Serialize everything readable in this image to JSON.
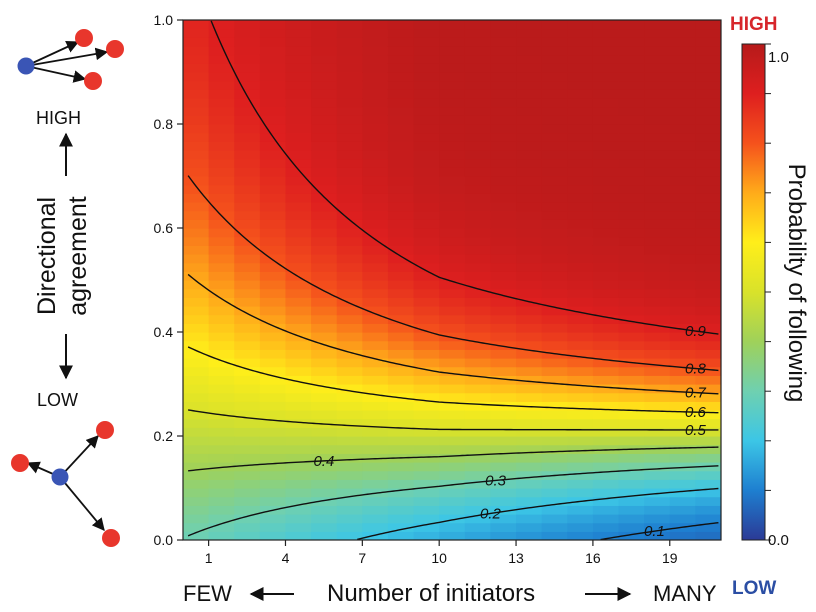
{
  "chart_data": {
    "type": "heatmap",
    "x_axis": {
      "label": "Number of initiators",
      "label_left": "FEW",
      "label_right": "MANY",
      "range": [
        0,
        21
      ],
      "ticks": [
        1,
        4,
        7,
        10,
        13,
        16,
        19
      ],
      "tick_labels": [
        "1",
        "4",
        "7",
        "10",
        "13",
        "16",
        "19"
      ]
    },
    "y_axis": {
      "label_line1": "Directional",
      "label_line2": "agreement",
      "label_top": "HIGH",
      "label_bottom": "LOW",
      "range": [
        0,
        1
      ],
      "ticks": [
        0,
        0.2,
        0.4,
        0.6,
        0.8,
        1.0
      ],
      "tick_labels": [
        "0.0",
        "0.2",
        "0.4",
        "0.6",
        "0.8",
        "1.0"
      ]
    },
    "colorbar": {
      "label": "Probability of following",
      "top_tag": "HIGH",
      "bottom_tag": "LOW",
      "min_label": "0.0",
      "max_label": "1.0",
      "range": [
        0,
        1
      ],
      "colors": [
        "#2b3a96",
        "#1e7fd0",
        "#3cc6e6",
        "#6fd0b0",
        "#9fd15a",
        "#d9e22a",
        "#ffee1a",
        "#ffab1a",
        "#f5521c",
        "#de1f1f",
        "#b61a1a"
      ]
    },
    "contour_levels": [
      0.1,
      0.2,
      0.3,
      0.4,
      0.5,
      0.6,
      0.7,
      0.8,
      0.9
    ],
    "contour_labels": [
      "0.1",
      "0.2",
      "0.3",
      "0.4",
      "0.5",
      "0.6",
      "0.7",
      "0.8",
      "0.9"
    ],
    "grid": false
  },
  "colors": {
    "high": "#d7262b",
    "low": "#2b4ea4",
    "leader_dot": "#3a55b5",
    "follower_dot": "#e8362c"
  }
}
